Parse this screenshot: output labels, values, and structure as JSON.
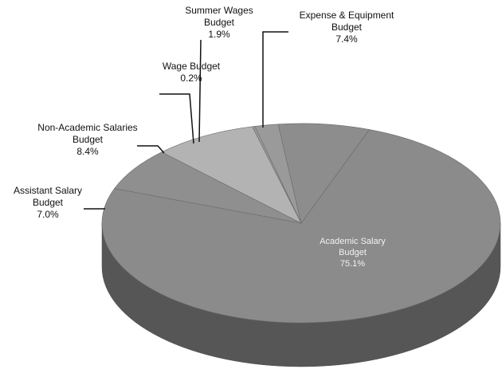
{
  "chart_data": {
    "type": "pie",
    "categories": [
      "Academic Salary Budget",
      "Assistant Salary Budget",
      "Non-Academic Salaries Budget",
      "Wage Budget",
      "Summer Wages Budget",
      "Expense & Equipment Budget"
    ],
    "values": [
      75.1,
      7.0,
      8.4,
      0.2,
      1.9,
      7.4
    ],
    "value_labels": [
      "75.1%",
      "7.0%",
      "8.4%",
      "0.2%",
      "1.9%",
      "7.4%"
    ],
    "colors": [
      "#8b8b8b",
      "#8f8f8f",
      "#b3b3b3",
      "#9c9c9c",
      "#9a9a9a",
      "#8d8d8d"
    ]
  }
}
